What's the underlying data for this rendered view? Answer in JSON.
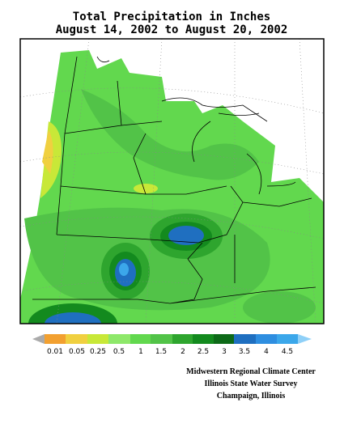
{
  "header": {
    "title": "Total Precipitation in Inches",
    "subtitle": "August 14, 2002 to August 20, 2002"
  },
  "legend": {
    "labels": [
      "0.01",
      "0.05",
      "0.25",
      "0.5",
      "1",
      "1.5",
      "2",
      "2.5",
      "3",
      "3.5",
      "4",
      "4.5"
    ]
  },
  "credits": [
    "Midwestern Regional Climate Center",
    "Illinois State Water Survey",
    "Champaign, Illinois"
  ]
}
